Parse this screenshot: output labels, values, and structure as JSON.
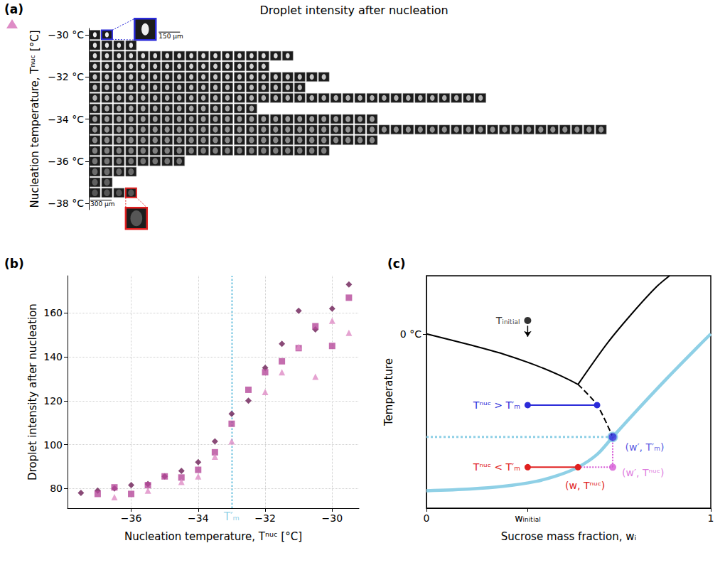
{
  "chart_data": [
    {
      "panel": "(a)",
      "type": "image_grid",
      "title": "Droplet intensity after nucleation",
      "marker": "triangle",
      "color": "#de8cc6",
      "ylabel": "Nucleation temperature, Tⁿᵘᶜ [°C]",
      "xlim": [
        0,
        46
      ],
      "ylim": [
        -38.3,
        -29.7
      ],
      "yticks": [
        {
          "value": -30,
          "label": "−30 °C"
        },
        {
          "value": -32,
          "label": "−32 °C"
        },
        {
          "value": -34,
          "label": "−34 °C"
        },
        {
          "value": -36,
          "label": "−36 °C"
        },
        {
          "value": -38,
          "label": "−38 °C"
        }
      ],
      "tick_labels": "y",
      "grid": false,
      "rows": [
        {
          "t": -30,
          "count": 2
        },
        {
          "t": -30.5,
          "count": 4
        },
        {
          "t": -31,
          "count": 17
        },
        {
          "t": -31.5,
          "count": 15
        },
        {
          "t": -32,
          "count": 20
        },
        {
          "t": -32.5,
          "count": 18
        },
        {
          "t": -33,
          "count": 33
        },
        {
          "t": -33.5,
          "count": 14
        },
        {
          "t": -34,
          "count": 24
        },
        {
          "t": -34.5,
          "count": 43
        },
        {
          "t": -35,
          "count": 24
        },
        {
          "t": -35.5,
          "count": 20
        },
        {
          "t": -36,
          "count": 8
        },
        {
          "t": -36.5,
          "count": 4
        },
        {
          "t": -37,
          "count": 2
        },
        {
          "t": -37.5,
          "count": 4
        }
      ],
      "highlights": [
        {
          "t": -30,
          "index": 1,
          "color": "#2b2bd9"
        },
        {
          "t": -37.5,
          "index": 3,
          "color": "#e02020"
        }
      ],
      "scale_bars": [
        {
          "t": -30,
          "index": 1,
          "label": "150 µm"
        },
        {
          "t": -37.5,
          "index": 0,
          "label": "300 µm"
        }
      ]
    },
    {
      "panel": "(b)",
      "type": "scatter",
      "xlabel": "Nucleation temperature, Tⁿᵘᶜ [°C]",
      "ylabel": "Droplet intensity after nucleation",
      "xlim": [
        -37.9,
        -29.2
      ],
      "ylim": [
        71,
        177
      ],
      "xticks": [
        {
          "value": -36,
          "label": "−36"
        },
        {
          "value": -34,
          "label": "−34"
        },
        {
          "value": -32,
          "label": "−32"
        },
        {
          "value": -30,
          "label": "−30"
        }
      ],
      "yticks": [
        80,
        100,
        120,
        140,
        160
      ],
      "grid": true,
      "x": [
        -37.5,
        -37,
        -36.5,
        -36,
        -35.5,
        -35,
        -34.5,
        -34,
        -33.5,
        -33,
        -32.5,
        -32,
        -31.5,
        -31,
        -30.5,
        -30,
        -29.5
      ],
      "series": [
        {
          "marker": "diamond",
          "color": "#6b1d55",
          "values": [
            78,
            79,
            80,
            81.5,
            82,
            85.5,
            88,
            92,
            101.5,
            114,
            120,
            135,
            146,
            161,
            152.5,
            162,
            173
          ]
        },
        {
          "marker": "square",
          "color": "#b5489a",
          "values": [
            null,
            77.5,
            80.5,
            77.5,
            81.5,
            85.5,
            85,
            88.5,
            96.5,
            109.5,
            125,
            133,
            138,
            144,
            154,
            145,
            167
          ]
        },
        {
          "marker": "triangle",
          "color": "#de8cc6",
          "values": [
            null,
            null,
            76,
            null,
            79,
            null,
            83,
            85.5,
            94.5,
            101.5,
            null,
            124,
            133,
            144.5,
            131,
            156.5,
            151
          ]
        }
      ],
      "annotations": [
        {
          "text": "T′ₘ",
          "x": -33,
          "color": "#8fd0e6",
          "line_style": "dotted"
        }
      ]
    },
    {
      "panel": "(c)",
      "type": "line",
      "xlabel": "Sucrose mass fraction, wᵢ",
      "ylabel": "Temperature",
      "xlim": [
        0,
        1
      ],
      "ylim": [
        -60,
        20
      ],
      "xticks": [
        0,
        {
          "value": 0.356,
          "label": "wᵢₙᵢₜᵢₐₗ"
        },
        1
      ],
      "yticks": [
        {
          "value": 0,
          "label": "0 °C"
        }
      ],
      "grid": false,
      "series": [
        {
          "type": "line",
          "color": "#000000",
          "line_style": "solid",
          "x": [
            0,
            0.154,
            0.269,
            0.384,
            0.476,
            0.533
          ],
          "values": [
            0,
            -3.8,
            -6.9,
            -10.8,
            -14.6,
            -17.4
          ]
        },
        {
          "type": "line",
          "color": "#000000",
          "line_style": "dashed",
          "x": [
            0.533,
            0.6,
            0.655
          ],
          "values": [
            -17.4,
            -24.5,
            -35.5
          ]
        },
        {
          "type": "line",
          "color": "#000000",
          "line_style": "solid",
          "x": [
            0.533,
            0.637,
            0.729,
            0.809,
            0.855
          ],
          "values": [
            -17.4,
            -3.1,
            7.7,
            16.2,
            20
          ]
        },
        {
          "type": "line",
          "color": "#8fd0e6",
          "line_style": "solid",
          "x": [
            0,
            0.154,
            0.269,
            0.384,
            0.46,
            0.533,
            0.6,
            0.655,
            0.729,
            0.844,
            0.959,
            1
          ],
          "values": [
            -54,
            -53.4,
            -52.5,
            -50.8,
            -48.8,
            -45.9,
            -41.5,
            -35.5,
            -27.5,
            -15.5,
            -4,
            0
          ]
        },
        {
          "type": "line",
          "color": "#8fd0e6",
          "line_style": "dotted",
          "x": [
            0,
            0.655
          ],
          "values": [
            -35.5,
            -35.5
          ]
        },
        {
          "type": "line",
          "color": "#2b2bd9",
          "line_style": "solid",
          "marker": "circle",
          "x": [
            0.356,
            0.6
          ],
          "values": [
            -24.5,
            -24.5
          ],
          "labels": [
            "Tⁿᵘᶜ > T′ₘ",
            null
          ]
        },
        {
          "type": "line",
          "color": "#e02020",
          "line_style": "solid",
          "marker": "circle",
          "x": [
            0.356,
            0.533
          ],
          "values": [
            -45.9,
            -45.9
          ],
          "labels": [
            "Tⁿᵘᶜ < T′ₘ",
            "(w, Tⁿᵘᶜ)"
          ]
        },
        {
          "type": "line",
          "color": "#d65ad6",
          "line_style": "dotted",
          "x": [
            0.533,
            0.655
          ],
          "values": [
            -45.9,
            -45.9
          ]
        },
        {
          "type": "line",
          "color": "#d65ad6",
          "line_style": "dotted",
          "x": [
            0.655,
            0.655
          ],
          "values": [
            -35.5,
            -45.9
          ]
        },
        {
          "type": "scatter",
          "color": "#d65ad6",
          "marker": "circle",
          "x": [
            0.655
          ],
          "values": [
            -45.9
          ],
          "labels": [
            "(w′, Tⁿᵘᶜ)"
          ]
        },
        {
          "type": "scatter",
          "color": "#2b2bd9",
          "marker": "circle",
          "x": [
            0.655
          ],
          "values": [
            -35.5
          ],
          "labels": [
            "(w′, T′ₘ)"
          ]
        },
        {
          "type": "scatter",
          "color": "#000000",
          "marker": "circle",
          "x": [
            0.356
          ],
          "values": [
            4.6
          ],
          "labels": [
            "Tᵢₙᵢₜᵢₐₗ"
          ]
        },
        {
          "type": "arrow",
          "color": "#000000",
          "x": [
            0.356,
            0.356
          ],
          "values": [
            2.8,
            -1
          ]
        }
      ]
    }
  ]
}
